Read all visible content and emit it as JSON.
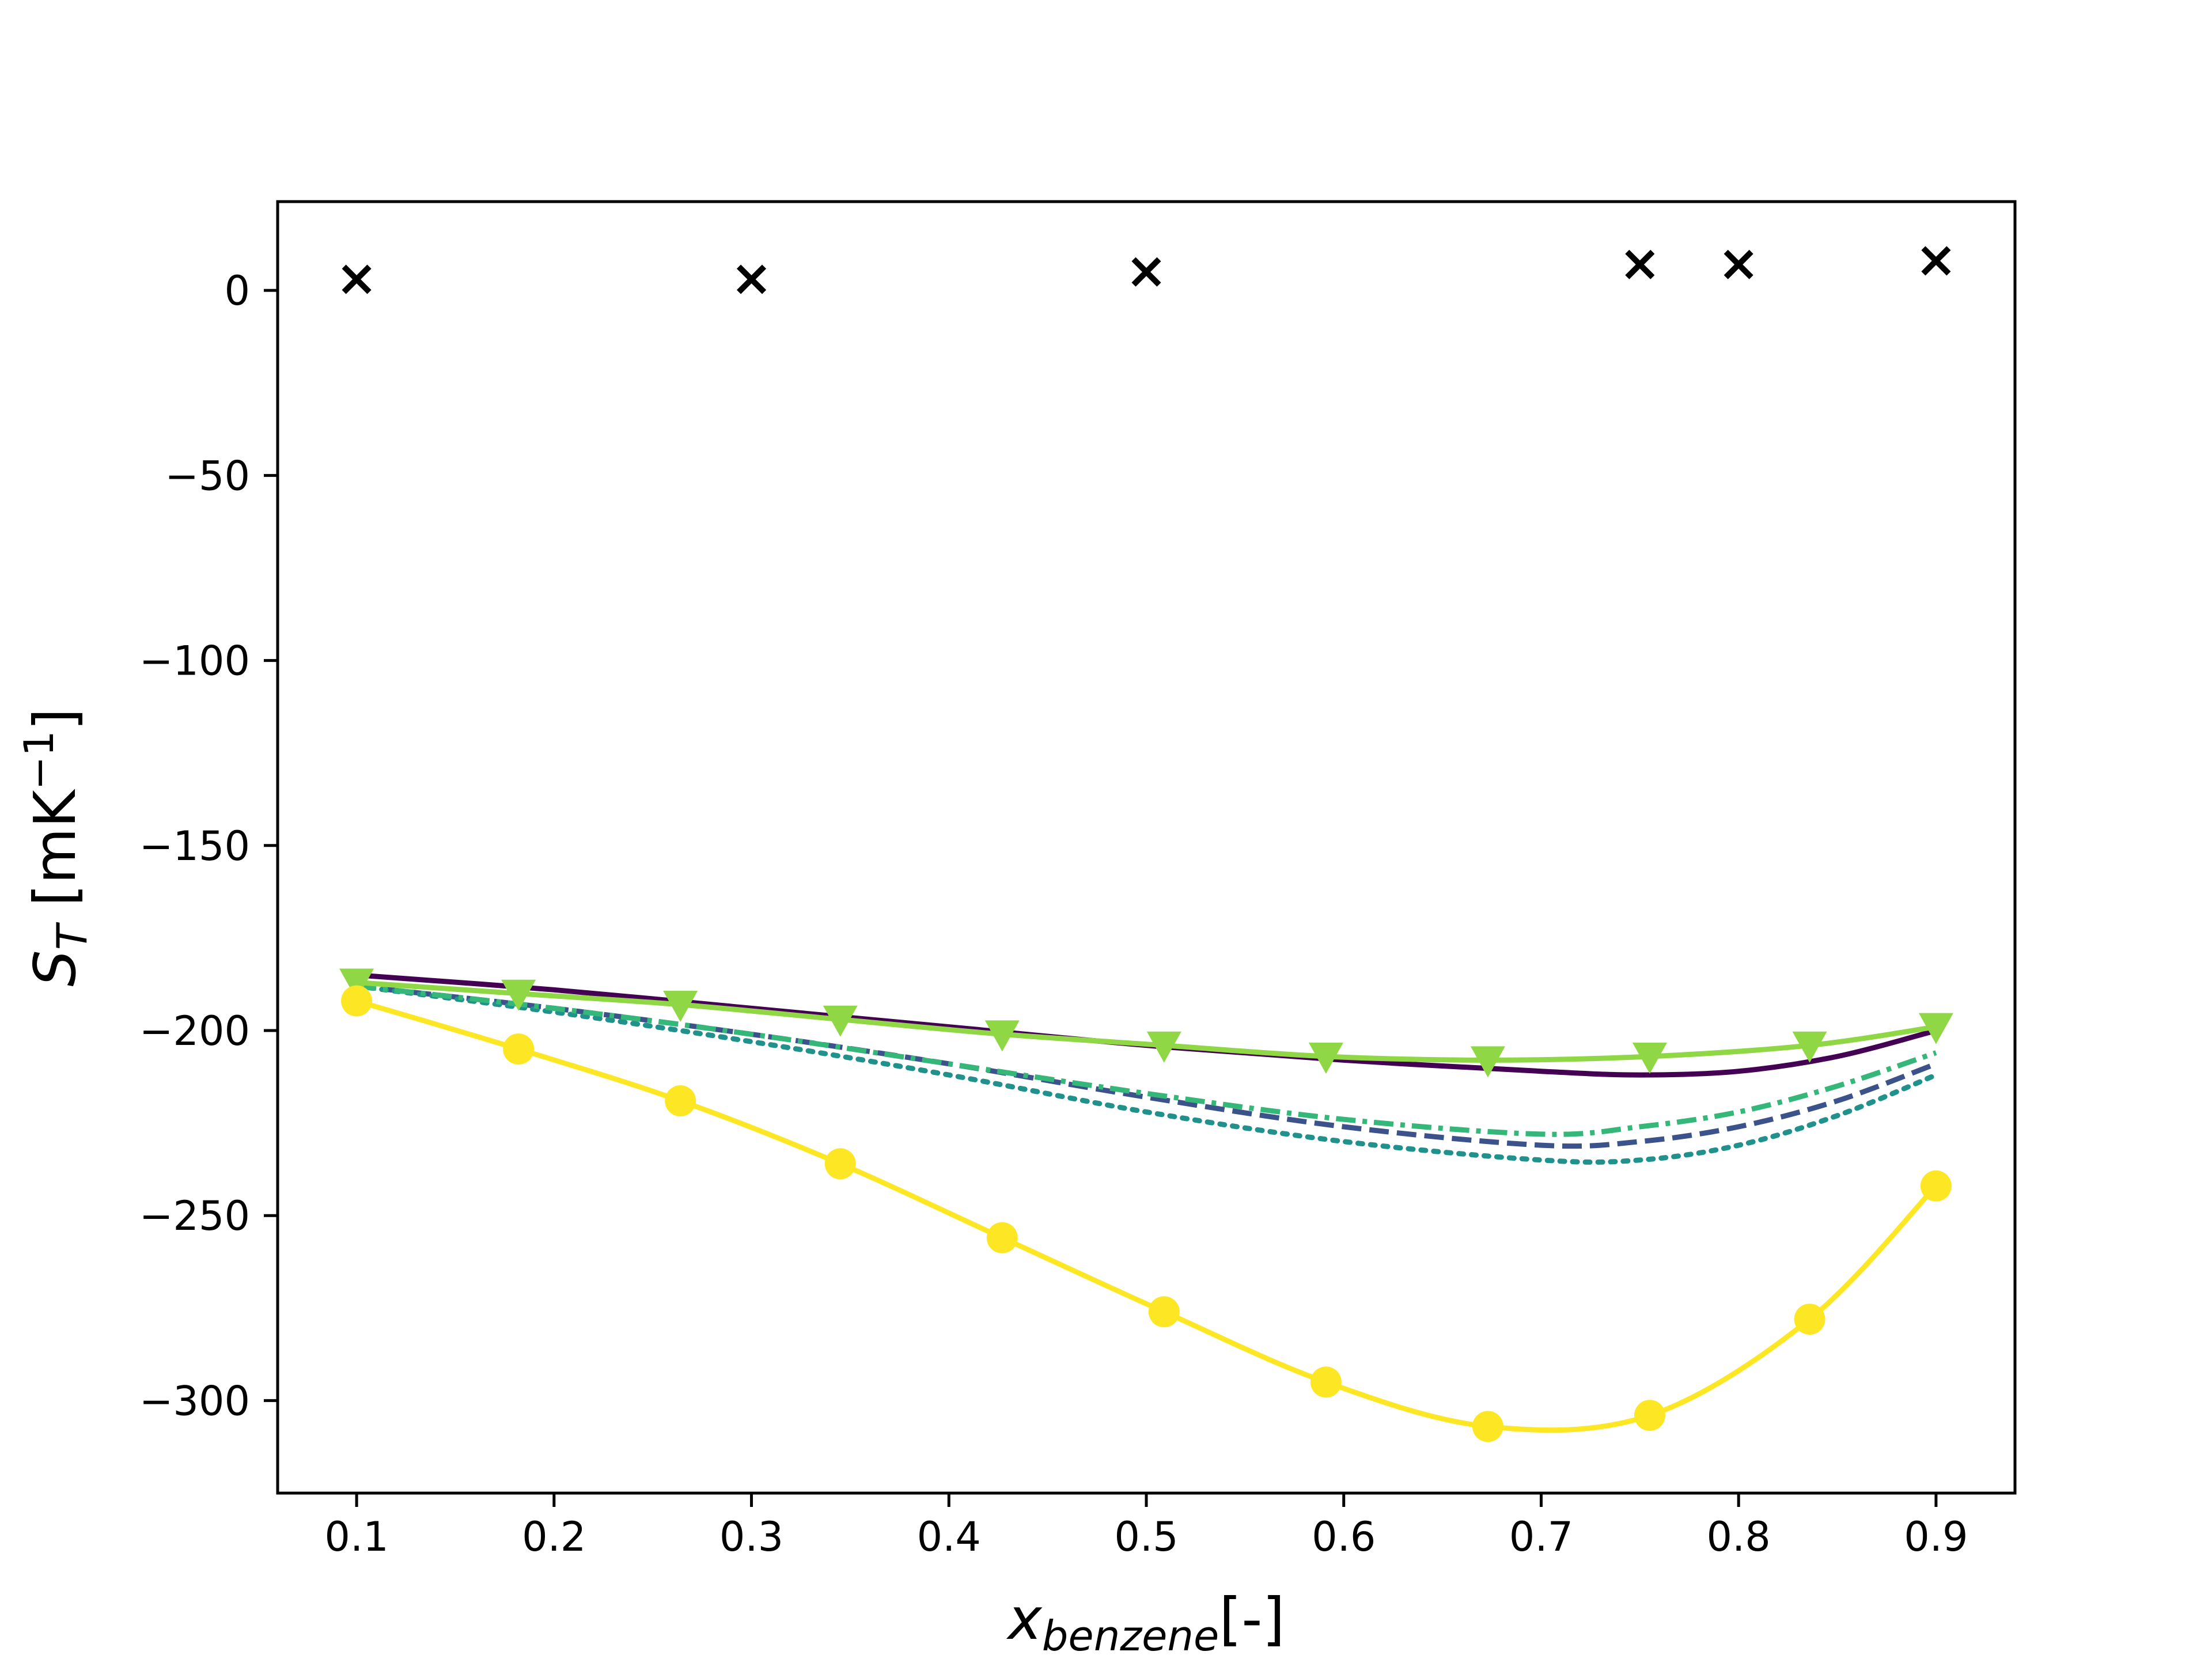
{
  "chart_data": {
    "type": "line",
    "xlabel": {
      "main": "x",
      "sub": "benzene",
      "suffix": "[-]"
    },
    "ylabel": {
      "main": "S",
      "sub": "T",
      "unit_prefix": " [mK",
      "unit_sup": "−1",
      "unit_suffix": "]"
    },
    "xlim": [
      0.06,
      0.94
    ],
    "ylim": [
      -325,
      24
    ],
    "xticks": [
      0.1,
      0.2,
      0.3,
      0.4,
      0.5,
      0.6,
      0.7,
      0.8,
      0.9
    ],
    "xtick_labels": [
      "0.1",
      "0.2",
      "0.3",
      "0.4",
      "0.5",
      "0.6",
      "0.7",
      "0.8",
      "0.9"
    ],
    "yticks": [
      0,
      -50,
      -100,
      -150,
      -200,
      -250,
      -300
    ],
    "ytick_labels": [
      "0",
      "−50",
      "−100",
      "−150",
      "−200",
      "−250",
      "−300"
    ],
    "grid": false,
    "legend": "none",
    "colors": {
      "dark_purple": "#440154",
      "dark_blue": "#3b528b",
      "teal": "#21918c",
      "green": "#35b779",
      "light_green": "#8fd744",
      "yellow": "#fde725",
      "black": "#000000"
    },
    "series": [
      {
        "color": "#000000",
        "style": "markers",
        "marker": "x",
        "points": [
          [
            0.1,
            3
          ],
          [
            0.3,
            3
          ],
          [
            0.5,
            5
          ],
          [
            0.75,
            7
          ],
          [
            0.8,
            7
          ],
          [
            0.9,
            8
          ]
        ]
      },
      {
        "color": "#440154",
        "style": "solid",
        "points": [
          [
            0.1,
            -185
          ],
          [
            0.2,
            -189
          ],
          [
            0.3,
            -194
          ],
          [
            0.4,
            -199
          ],
          [
            0.5,
            -204
          ],
          [
            0.6,
            -208
          ],
          [
            0.7,
            -211
          ],
          [
            0.75,
            -212
          ],
          [
            0.8,
            -211
          ],
          [
            0.85,
            -207
          ],
          [
            0.9,
            -200
          ]
        ]
      },
      {
        "color": "#3b528b",
        "style": "dashed",
        "points": [
          [
            0.1,
            -188
          ],
          [
            0.2,
            -194
          ],
          [
            0.3,
            -201
          ],
          [
            0.4,
            -209
          ],
          [
            0.5,
            -218
          ],
          [
            0.6,
            -226
          ],
          [
            0.7,
            -231
          ],
          [
            0.75,
            -230
          ],
          [
            0.8,
            -226
          ],
          [
            0.85,
            -219
          ],
          [
            0.9,
            -209
          ]
        ]
      },
      {
        "color": "#21918c",
        "style": "dotted",
        "points": [
          [
            0.1,
            -188
          ],
          [
            0.2,
            -195
          ],
          [
            0.3,
            -203
          ],
          [
            0.4,
            -212
          ],
          [
            0.5,
            -222
          ],
          [
            0.6,
            -230
          ],
          [
            0.7,
            -235
          ],
          [
            0.75,
            -235
          ],
          [
            0.8,
            -231
          ],
          [
            0.85,
            -223
          ],
          [
            0.9,
            -212
          ]
        ]
      },
      {
        "color": "#35b779",
        "style": "dashdot",
        "points": [
          [
            0.1,
            -188
          ],
          [
            0.2,
            -194
          ],
          [
            0.3,
            -201
          ],
          [
            0.4,
            -209
          ],
          [
            0.5,
            -217
          ],
          [
            0.6,
            -224
          ],
          [
            0.7,
            -228
          ],
          [
            0.75,
            -226
          ],
          [
            0.8,
            -222
          ],
          [
            0.85,
            -215
          ],
          [
            0.9,
            -206
          ]
        ]
      },
      {
        "color": "#8fd744",
        "style": "solid",
        "marker": "triangle-down",
        "points": [
          [
            0.1,
            -187
          ],
          [
            0.182,
            -190
          ],
          [
            0.264,
            -193
          ],
          [
            0.345,
            -197
          ],
          [
            0.427,
            -201
          ],
          [
            0.509,
            -204
          ],
          [
            0.591,
            -207
          ],
          [
            0.673,
            -208
          ],
          [
            0.755,
            -207
          ],
          [
            0.836,
            -204
          ],
          [
            0.9,
            -199
          ]
        ]
      },
      {
        "color": "#fde725",
        "style": "solid",
        "marker": "circle",
        "points": [
          [
            0.1,
            -192
          ],
          [
            0.182,
            -205
          ],
          [
            0.264,
            -219
          ],
          [
            0.345,
            -236
          ],
          [
            0.427,
            -256
          ],
          [
            0.509,
            -276
          ],
          [
            0.591,
            -295
          ],
          [
            0.673,
            -307
          ],
          [
            0.755,
            -304
          ],
          [
            0.836,
            -278
          ],
          [
            0.9,
            -242
          ]
        ]
      }
    ]
  }
}
